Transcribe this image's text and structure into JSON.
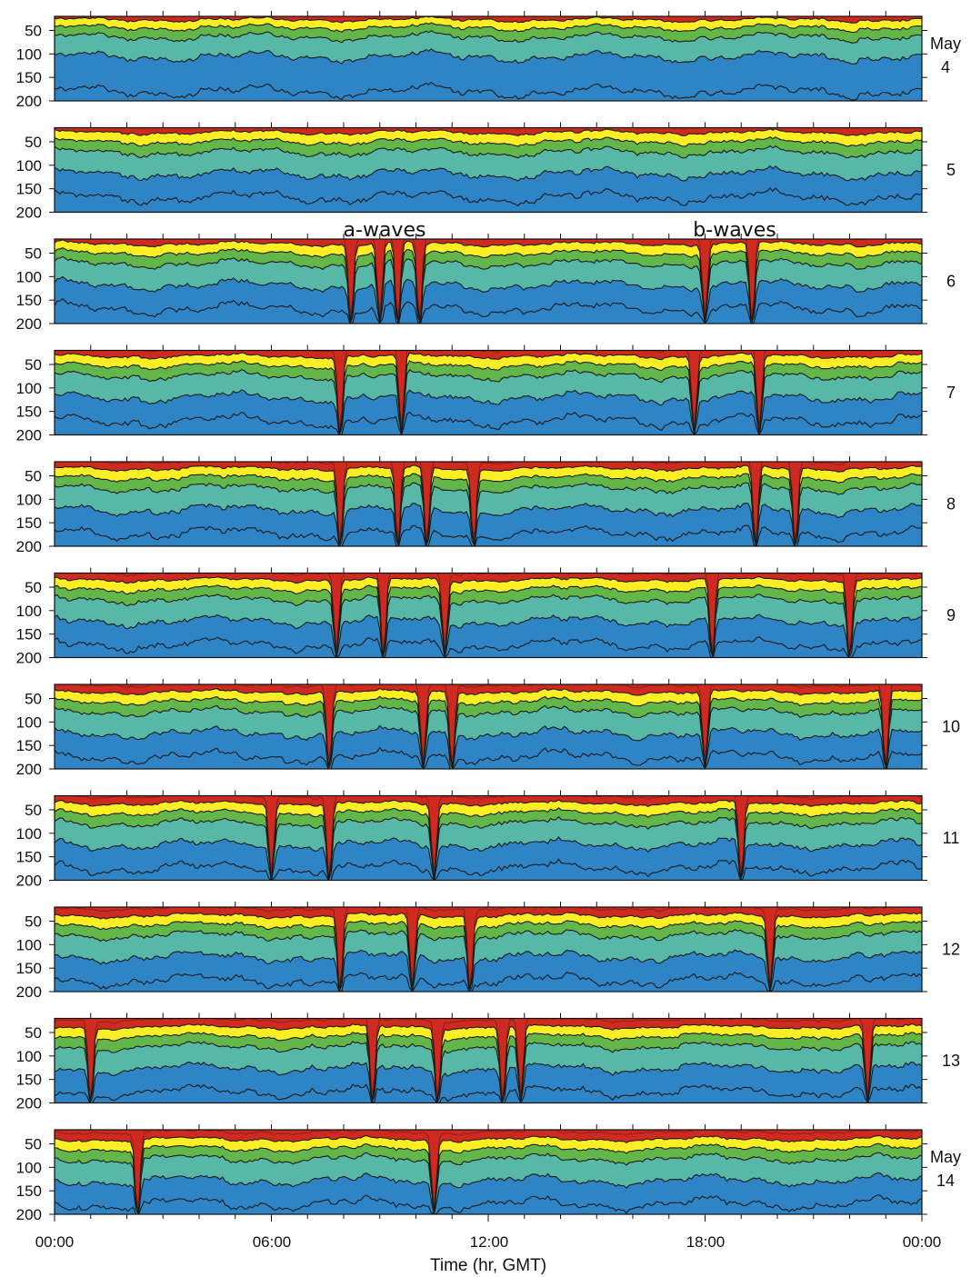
{
  "chart_data": {
    "type": "area",
    "x_unit": "hr, GMT",
    "x_range": [
      0,
      24
    ],
    "x_tick_labels": [
      "00:00",
      "06:00",
      "12:00",
      "18:00",
      "00:00"
    ],
    "xlabel": "Time (hr, GMT)",
    "y_tick_labels": [
      "50",
      "100",
      "150",
      "200"
    ],
    "ylim": [
      200,
      20
    ],
    "y_inverted": true,
    "month_label": "May",
    "annotations": [
      "a-waves",
      "b-waves"
    ],
    "band_colors": [
      "#cf2a1f",
      "#ee8a25",
      "#fcee24",
      "#63b64a",
      "#58b8a7",
      "#2e84c5",
      "#1f4fa3"
    ],
    "panels": [
      {
        "day": "4",
        "boundaries": [
          27,
          44,
          64,
          106,
          180
        ],
        "a_wave_hours": [],
        "b_wave_hours": []
      },
      {
        "day": "5",
        "boundaries": [
          30,
          50,
          72,
          118,
          168
        ],
        "a_wave_hours": [],
        "b_wave_hours": []
      },
      {
        "day": "6",
        "boundaries": [
          30,
          50,
          72,
          118,
          168
        ],
        "a_wave_hours": [
          8.2,
          9.0,
          9.5,
          10.1
        ],
        "b_wave_hours": [
          18.0,
          19.3
        ]
      },
      {
        "day": "7",
        "boundaries": [
          32,
          52,
          74,
          120,
          170
        ],
        "a_wave_hours": [
          7.9,
          9.6
        ],
        "b_wave_hours": [
          17.7,
          19.5
        ]
      },
      {
        "day": "8",
        "boundaries": [
          34,
          54,
          76,
          122,
          172
        ],
        "a_wave_hours": [
          7.9,
          9.5,
          10.3,
          11.6
        ],
        "b_wave_hours": [
          19.4,
          20.5
        ]
      },
      {
        "day": "9",
        "boundaries": [
          34,
          54,
          76,
          122,
          172
        ],
        "a_wave_hours": [
          7.8,
          9.1,
          10.8
        ],
        "b_wave_hours": [
          18.2,
          22.0
        ]
      },
      {
        "day": "10",
        "boundaries": [
          36,
          56,
          78,
          124,
          174
        ],
        "a_wave_hours": [
          7.6,
          10.2,
          11.0
        ],
        "b_wave_hours": [
          18.0,
          23.0
        ]
      },
      {
        "day": "11",
        "boundaries": [
          36,
          56,
          78,
          124,
          174
        ],
        "a_wave_hours": [
          6.0,
          7.6,
          10.5
        ],
        "b_wave_hours": [
          19.0
        ]
      },
      {
        "day": "12",
        "boundaries": [
          38,
          58,
          80,
          126,
          176
        ],
        "a_wave_hours": [
          7.9,
          9.9,
          11.5
        ],
        "b_wave_hours": [
          19.8
        ]
      },
      {
        "day": "13",
        "boundaries": [
          38,
          58,
          80,
          126,
          176
        ],
        "a_wave_hours": [
          1.0,
          8.8,
          10.6,
          12.4,
          12.9
        ],
        "b_wave_hours": [
          22.5
        ]
      },
      {
        "day": "14",
        "boundaries": [
          40,
          60,
          82,
          128,
          178
        ],
        "a_wave_hours": [
          2.3,
          10.5
        ],
        "b_wave_hours": []
      }
    ]
  }
}
